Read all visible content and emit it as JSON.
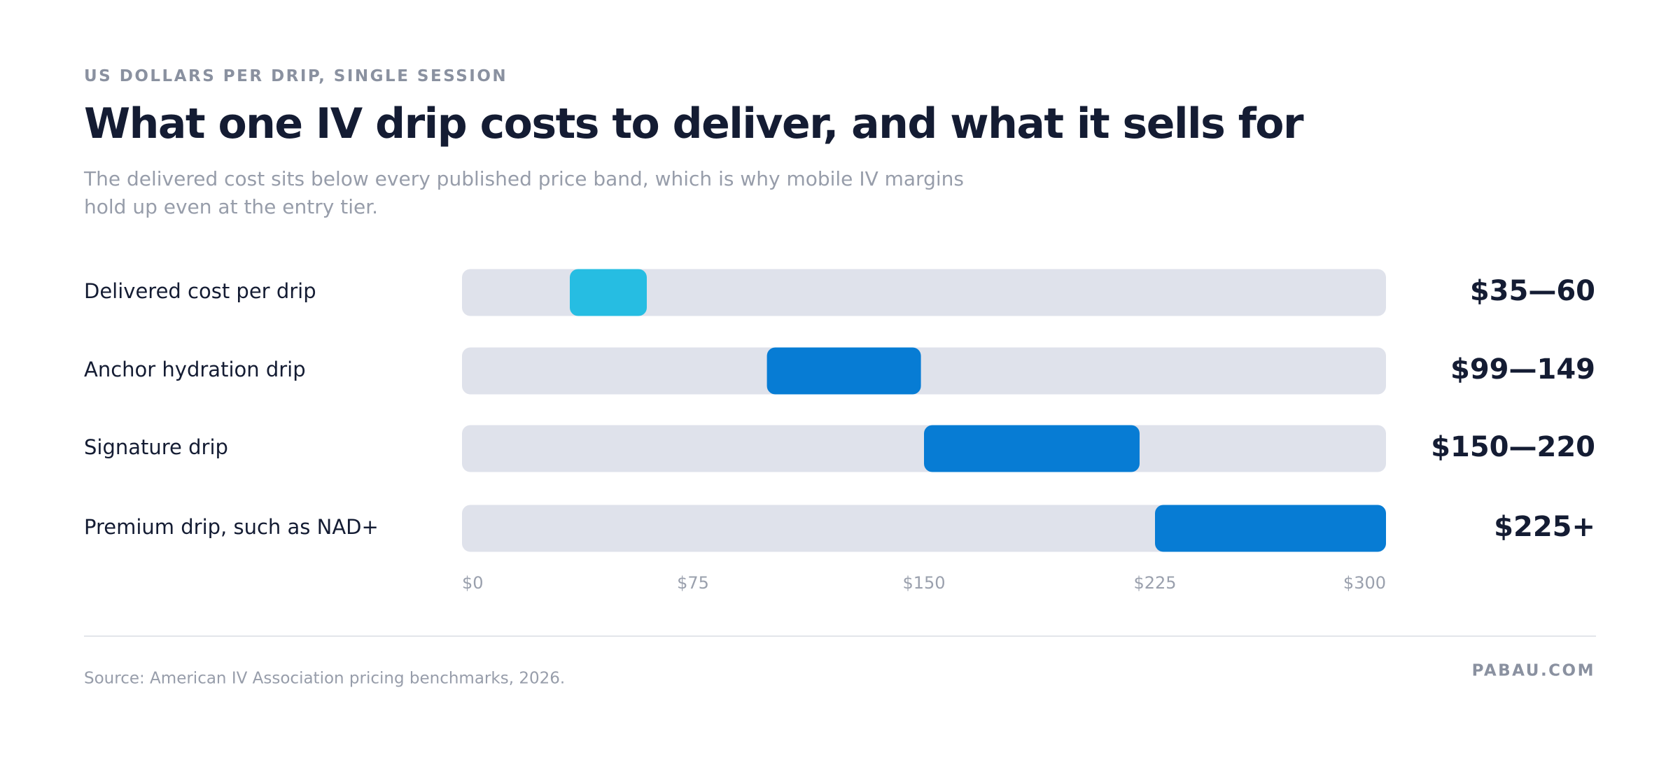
{
  "kicker": "US DOLLARS PER DRIP, SINGLE SESSION",
  "chart_data": {
    "type": "range-bar",
    "title": "What one IV drip costs to deliver, and what it sells for",
    "subtitle": "The delivered cost sits below every published price band, which is why mobile IV margins hold up even at the entry tier.",
    "categories": [
      "Delivered cost per drip",
      "Anchor hydration drip",
      "Signature drip",
      "Premium drip, such as NAD+"
    ],
    "low": [
      35,
      99,
      150,
      225
    ],
    "high": [
      60,
      149,
      220,
      null
    ],
    "value_labels": [
      "$35—60",
      "$99—149",
      "$150—220",
      "$225+"
    ],
    "colors": [
      "#26bde2",
      "#077cd4",
      "#077cd4",
      "#077cd4"
    ],
    "track_color": "#dfe2eb",
    "xlim": [
      0,
      300
    ],
    "xticks": [
      {
        "value": 0,
        "label": "$0"
      },
      {
        "value": 75,
        "label": "$75"
      },
      {
        "value": 150,
        "label": "$150"
      },
      {
        "value": 225,
        "label": "$225"
      },
      {
        "value": 300,
        "label": "$300"
      }
    ],
    "source": "Source: American IV Association pricing benchmarks, 2026."
  },
  "brand": "PABAU.COM"
}
